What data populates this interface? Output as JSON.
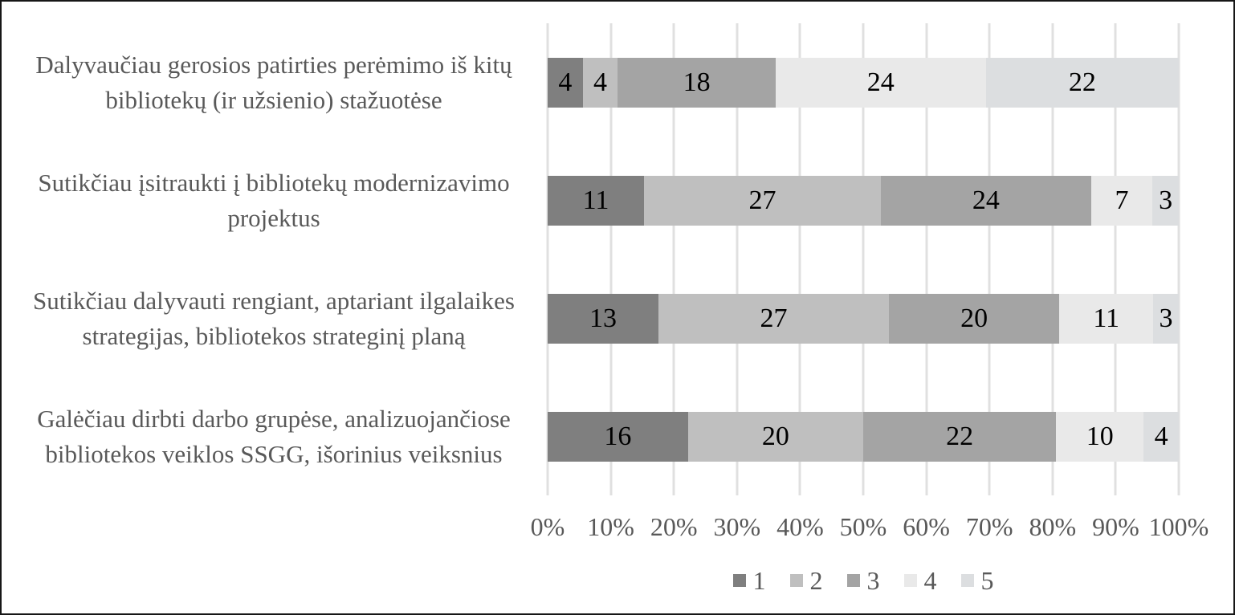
{
  "chart_data": {
    "type": "bar",
    "subtype": "stacked-100pct",
    "orientation": "horizontal",
    "categories": [
      "Dalyvaučiau gerosios patirties perėmimo iš kitų bibliotekų (ir užsienio) stažuotėse",
      "Sutikčiau įsitraukti į bibliotekų modernizavimo projektus",
      "Sutikčiau dalyvauti rengiant, aptariant ilgalaikes strategijas, bibliotekos strateginį planą",
      "Galėčiau dirbti darbo grupėse, analizuojančiose bibliotekos veiklos SSGG, išorinius veiksnius"
    ],
    "series": [
      {
        "name": "1",
        "color": "#7f7f7f",
        "values": [
          4,
          11,
          13,
          16
        ]
      },
      {
        "name": "2",
        "color": "#bfbfbf",
        "values": [
          4,
          27,
          27,
          20
        ]
      },
      {
        "name": "3",
        "color": "#a4a4a4",
        "values": [
          18,
          24,
          20,
          22
        ]
      },
      {
        "name": "4",
        "color": "#e9e9e9",
        "values": [
          24,
          7,
          11,
          10
        ]
      },
      {
        "name": "5",
        "color": "#dcdee0",
        "values": [
          22,
          3,
          3,
          4
        ]
      }
    ],
    "x_ticks": [
      "0%",
      "10%",
      "20%",
      "30%",
      "40%",
      "50%",
      "60%",
      "70%",
      "80%",
      "90%",
      "100%"
    ],
    "xlim": [
      0,
      100
    ],
    "grid": "vertical",
    "gridline_color": "#e0e0e0",
    "legend_position": "bottom",
    "label_color": "#595959",
    "data_label_color": "#000000",
    "background_color": "#ffffff",
    "border_color": "#161616"
  }
}
